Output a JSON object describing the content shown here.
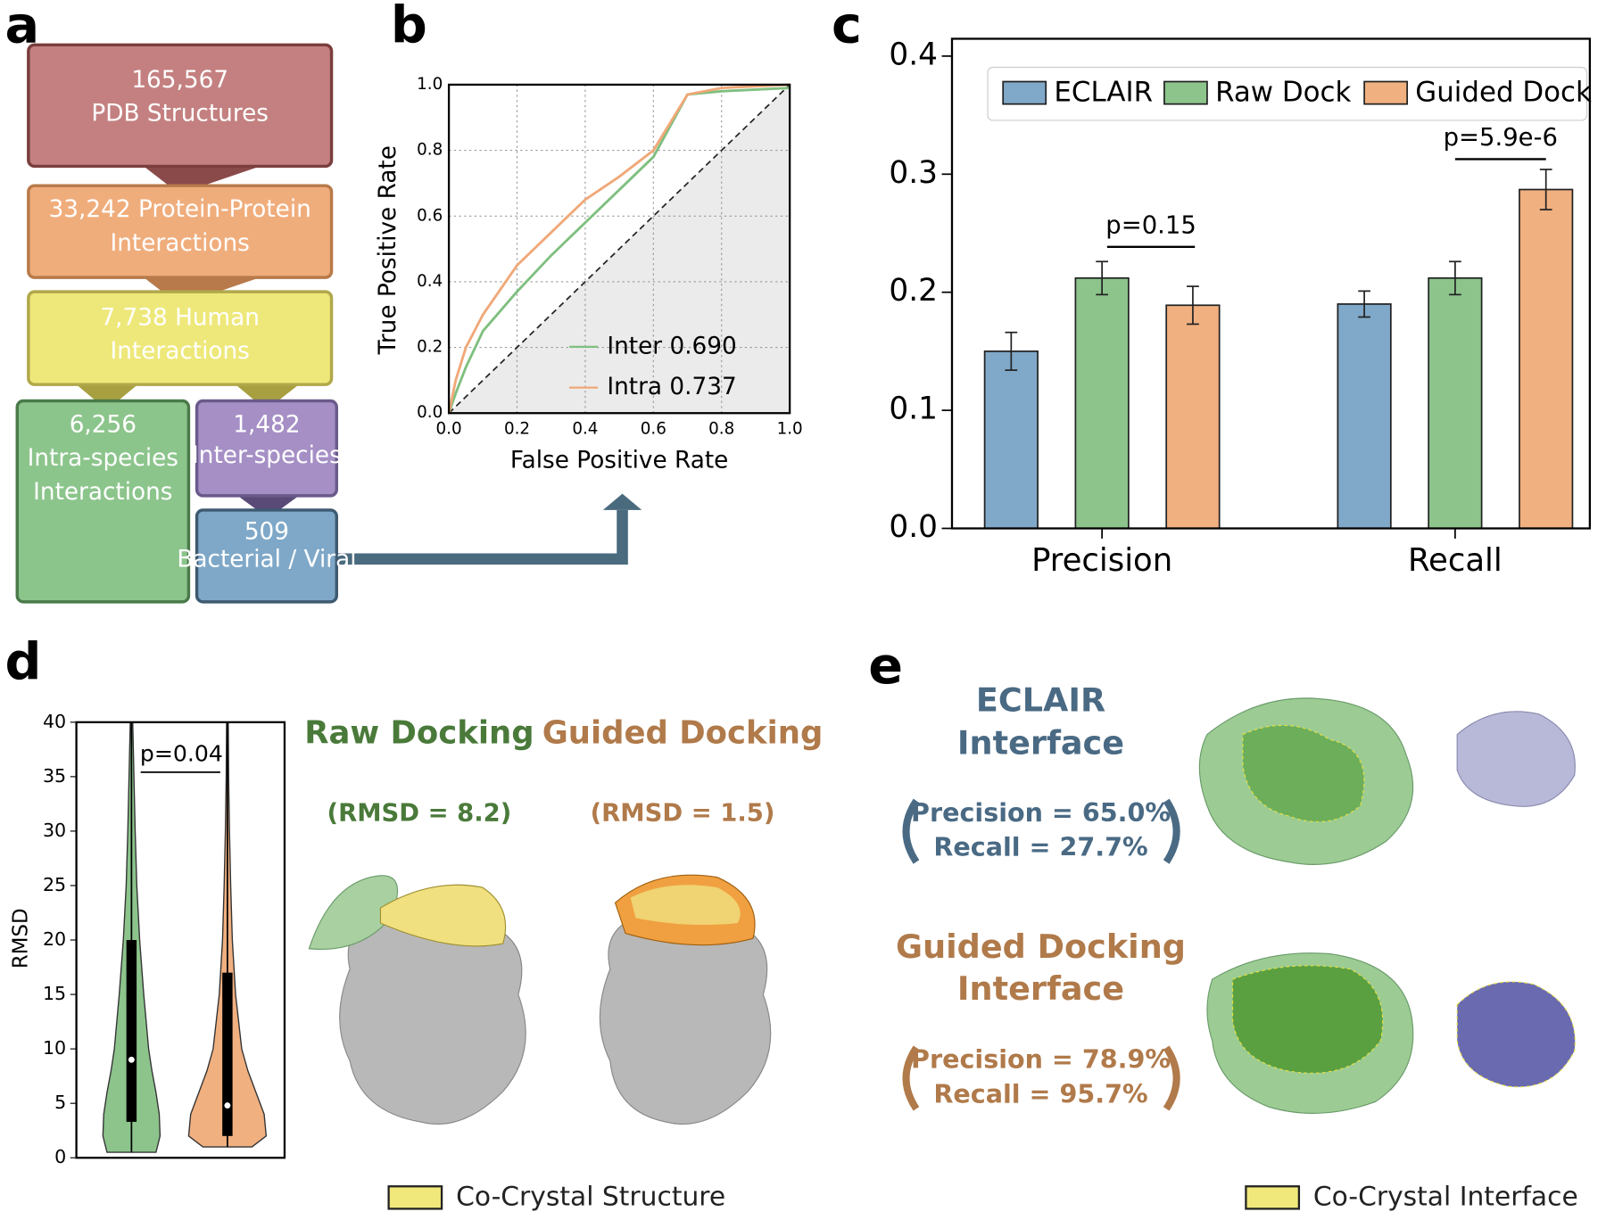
{
  "panel_labels": [
    "a",
    "b",
    "c",
    "d",
    "e"
  ],
  "flowchart": {
    "nodes": [
      {
        "lines": [
          "165,567",
          "PDB Structures"
        ]
      },
      {
        "lines": [
          "33,242 Protein-Protein",
          "Interactions"
        ]
      },
      {
        "lines": [
          "7,738 Human",
          "Interactions"
        ]
      },
      {
        "lines": [
          "6,256",
          "Intra-species",
          "Interactions"
        ]
      },
      {
        "lines": [
          "1,482",
          "Inter-species"
        ]
      },
      {
        "lines": [
          "509",
          "Bacterial / Viral"
        ]
      }
    ]
  },
  "chart_data": [
    {
      "type": "line",
      "xlabel": "False Positive Rate",
      "ylabel": "True Positive Rate",
      "x": [
        0,
        0.02,
        0.05,
        0.1,
        0.2,
        0.3,
        0.4,
        0.5,
        0.6,
        0.7,
        0.8,
        1
      ],
      "series": [
        {
          "name": "Inter 0.690",
          "color": "#7fbf7f",
          "values": [
            0,
            0.06,
            0.14,
            0.25,
            0.37,
            0.48,
            0.58,
            0.68,
            0.78,
            0.97,
            0.98,
            0.99
          ]
        },
        {
          "name": "Intra 0.737",
          "color": "#f0a878",
          "values": [
            0,
            0.1,
            0.2,
            0.3,
            0.45,
            0.55,
            0.65,
            0.72,
            0.8,
            0.97,
            0.99,
            1
          ]
        }
      ],
      "xlim": [
        0,
        1
      ],
      "ylim": [
        0,
        1
      ],
      "xticks": [
        {
          "value": 0,
          "label": "0.0"
        },
        0.2,
        0.4,
        0.6,
        0.8,
        {
          "value": 1,
          "label": "1.0"
        }
      ],
      "yticks": [
        {
          "value": 0,
          "label": "0.0"
        },
        0.2,
        0.4,
        0.6,
        0.8,
        {
          "value": 1,
          "label": "1.0"
        }
      ],
      "grid": true
    },
    {
      "type": "bar",
      "categories": [
        "Precision",
        "Recall"
      ],
      "series": [
        {
          "name": "ECLAIR",
          "color": "#80a8c8",
          "values": [
            0.15,
            0.19
          ],
          "errors": [
            0.016,
            0.011
          ]
        },
        {
          "name": "Raw Dock",
          "color": "#8cc48c",
          "values": [
            0.212,
            0.212
          ],
          "errors": [
            0.014,
            0.014
          ]
        },
        {
          "name": "Guided Dock",
          "color": "#f0b080",
          "values": [
            0.189,
            0.287
          ],
          "errors": [
            0.016,
            0.017
          ]
        }
      ],
      "ylim": [
        0,
        0.4
      ],
      "yticks": [
        {
          "value": 0,
          "label": "0.0"
        },
        0.1,
        0.2,
        0.3,
        0.4
      ],
      "annotations": [
        "p=0.15",
        "p=5.9e-6"
      ],
      "legend": "top"
    },
    {
      "type": "violin",
      "ylabel": "RMSD",
      "ylim": [
        0,
        40
      ],
      "yticks": [
        0,
        5,
        10,
        15,
        20,
        25,
        30,
        35,
        40
      ],
      "density_y": [
        0,
        2,
        4,
        6,
        8,
        10,
        15,
        20,
        25,
        30,
        35,
        40
      ],
      "series": [
        {
          "color": "#8cc48c",
          "min": 0.5,
          "q1": 3.3,
          "median": 9,
          "q3": 20,
          "max": 40,
          "density": [
            0.6,
            0.7,
            0.68,
            0.6,
            0.5,
            0.42,
            0.3,
            0.2,
            0.13,
            0.09,
            0.06,
            0.03
          ]
        },
        {
          "color": "#f0b080",
          "min": 1,
          "q1": 2,
          "median": 4.8,
          "q3": 17,
          "max": 40,
          "density": [
            0.6,
            0.95,
            0.9,
            0.7,
            0.5,
            0.35,
            0.2,
            0.12,
            0.08,
            0.05,
            0.03,
            0.02
          ]
        }
      ],
      "annotations": [
        "p=0.04"
      ]
    }
  ],
  "docking": {
    "panels": [
      {
        "title": "Raw Docking",
        "rmsd": "(RMSD = 8.2)"
      },
      {
        "title": "Guided Docking",
        "rmsd": "(RMSD = 1.5)"
      }
    ],
    "legend": "Co-Crystal Structure"
  },
  "interface": {
    "panels": [
      {
        "title_lines": [
          "ECLAIR",
          "Interface"
        ],
        "metrics": [
          "Precision = 65.0%",
          "Recall = 27.7%"
        ]
      },
      {
        "title_lines": [
          "Guided Docking",
          "Interface"
        ],
        "metrics": [
          "Precision = 78.9%",
          "Recall = 95.7%"
        ]
      }
    ],
    "legend": "Co-Crystal Interface"
  }
}
